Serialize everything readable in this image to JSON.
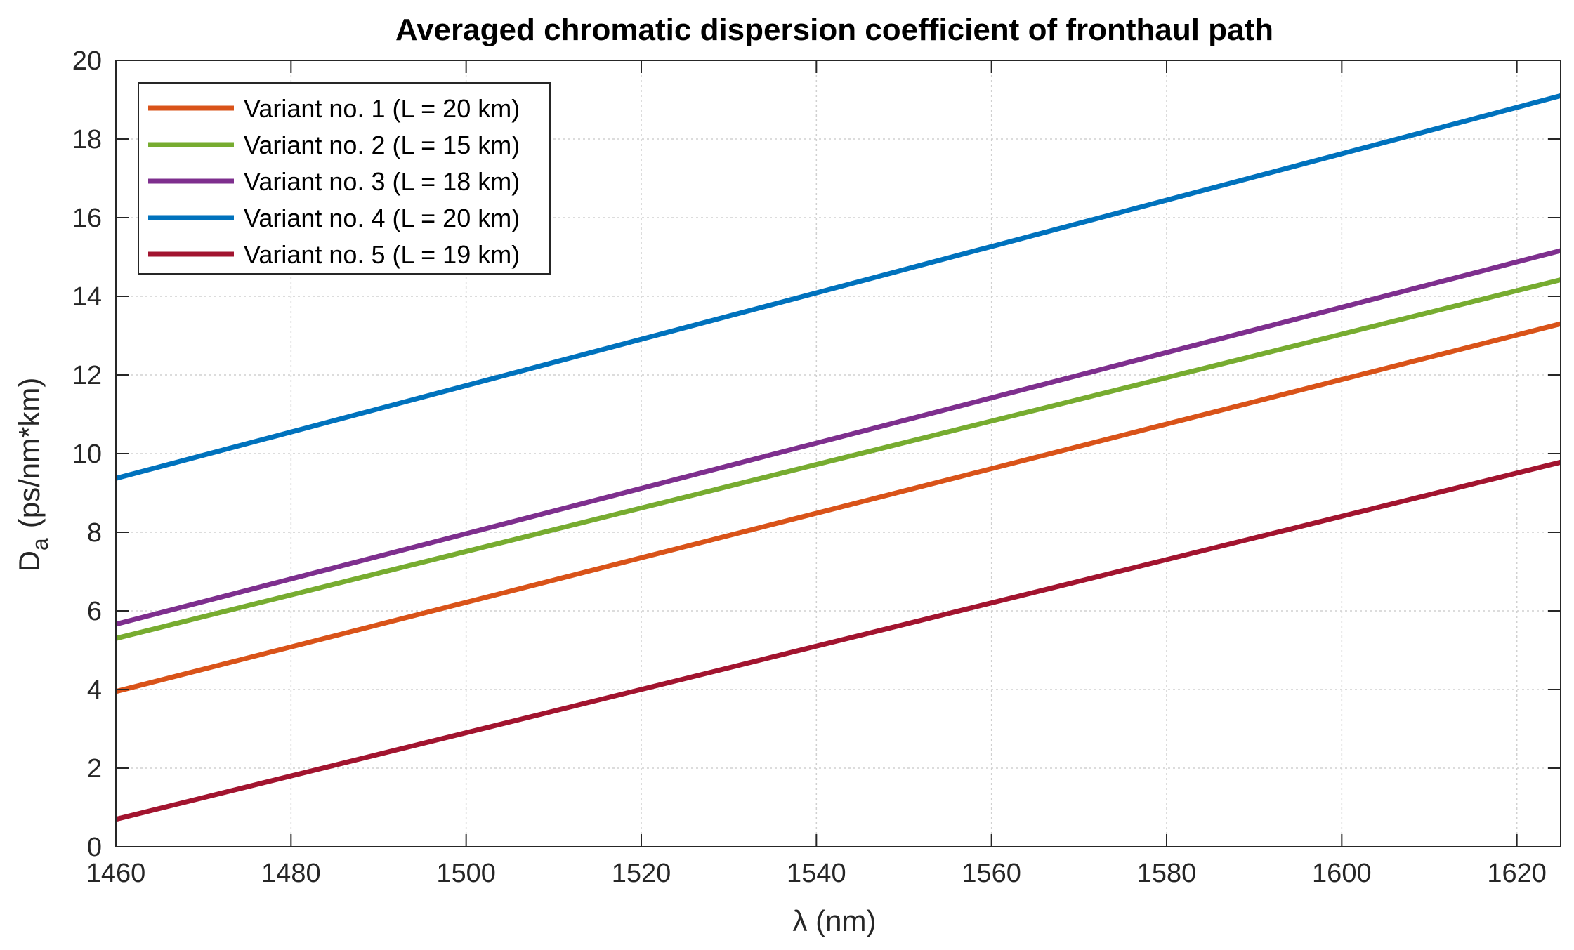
{
  "chart_data": {
    "type": "line",
    "title": "Averaged chromatic dispersion coefficient of fronthaul path",
    "xlabel": "λ (nm)",
    "ylabel": {
      "main": "D",
      "subscript": "a",
      "units": "(ps/nm*km)"
    },
    "xlim": [
      1460,
      1625
    ],
    "ylim": [
      0,
      20
    ],
    "xticks": [
      1460,
      1480,
      1500,
      1520,
      1540,
      1560,
      1580,
      1600,
      1620
    ],
    "yticks": [
      0,
      2,
      4,
      6,
      8,
      10,
      12,
      14,
      16,
      18,
      20
    ],
    "grid": true,
    "legend_position": "top-left",
    "series": [
      {
        "name": "Variant no. 1 (L = 20 km)",
        "color": "#D95319",
        "x": [
          1460,
          1625
        ],
        "values": [
          3.95,
          13.3
        ]
      },
      {
        "name": "Variant no. 2 (L = 15 km)",
        "color": "#77AC30",
        "x": [
          1460,
          1625
        ],
        "values": [
          5.3,
          14.42
        ]
      },
      {
        "name": "Variant no. 3 (L = 18 km)",
        "color": "#7E2F8E",
        "x": [
          1460,
          1625
        ],
        "values": [
          5.66,
          15.16
        ]
      },
      {
        "name": "Variant no. 4 (L = 20 km)",
        "color": "#0072BD",
        "x": [
          1460,
          1625
        ],
        "values": [
          9.37,
          19.1
        ]
      },
      {
        "name": "Variant no. 5 (L = 19 km)",
        "color": "#A2142F",
        "x": [
          1460,
          1625
        ],
        "values": [
          0.7,
          9.78
        ]
      }
    ]
  }
}
